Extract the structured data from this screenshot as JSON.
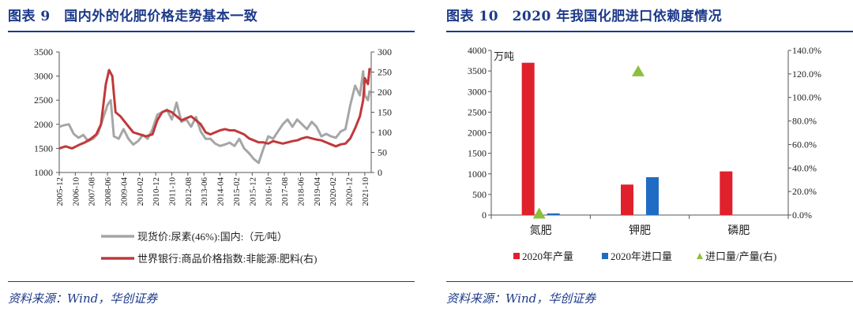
{
  "left": {
    "title": "图表 9　国内外的化肥价格走势基本一致",
    "source": "资料来源：Wind，华创证券",
    "chart_data": {
      "type": "line",
      "x_ticks": [
        "2005-12",
        "2006-10",
        "2007-08",
        "2008-06",
        "2009-04",
        "2010-02",
        "2010-12",
        "2011-10",
        "2012-08",
        "2013-06",
        "2014-04",
        "2015-02",
        "2015-12",
        "2016-10",
        "2017-08",
        "2018-06",
        "2019-04",
        "2020-02",
        "2020-12",
        "2021-10"
      ],
      "y_left_ticks": [
        "3500",
        "3000",
        "2500",
        "2000",
        "1500",
        "1000"
      ],
      "y_right_ticks": [
        "300",
        "250",
        "200",
        "150",
        "100",
        "50",
        "0"
      ],
      "ylim_left": [
        1000,
        3500
      ],
      "ylim_right": [
        0,
        300
      ],
      "series": [
        {
          "name": "现货价:尿素(46%):国内:（元/吨）",
          "axis": "left",
          "color": "#a6a6a6",
          "x": [
            "2005-12",
            "2006-03",
            "2006-06",
            "2006-09",
            "2006-12",
            "2007-03",
            "2007-06",
            "2007-09",
            "2007-12",
            "2008-03",
            "2008-06",
            "2008-08",
            "2008-10",
            "2009-01",
            "2009-04",
            "2009-07",
            "2009-10",
            "2010-01",
            "2010-04",
            "2010-07",
            "2010-10",
            "2011-01",
            "2011-04",
            "2011-07",
            "2011-10",
            "2012-01",
            "2012-04",
            "2012-07",
            "2012-10",
            "2013-01",
            "2013-04",
            "2013-07",
            "2013-10",
            "2014-01",
            "2014-04",
            "2014-07",
            "2014-10",
            "2015-01",
            "2015-04",
            "2015-07",
            "2015-10",
            "2016-01",
            "2016-04",
            "2016-07",
            "2016-10",
            "2017-01",
            "2017-04",
            "2017-07",
            "2017-10",
            "2018-01",
            "2018-04",
            "2018-07",
            "2018-10",
            "2019-01",
            "2019-04",
            "2019-07",
            "2019-10",
            "2020-01",
            "2020-04",
            "2020-07",
            "2020-10",
            "2021-01",
            "2021-04",
            "2021-07",
            "2021-09",
            "2021-10",
            "2021-12",
            "2022-01"
          ],
          "values": [
            1950,
            1980,
            2000,
            1800,
            1720,
            1780,
            1650,
            1700,
            1800,
            2100,
            2400,
            2500,
            1750,
            1700,
            1900,
            1700,
            1580,
            1650,
            1780,
            1700,
            1900,
            2200,
            2250,
            2300,
            2100,
            2450,
            2050,
            2100,
            1950,
            2150,
            1850,
            1700,
            1700,
            1600,
            1550,
            1580,
            1620,
            1550,
            1700,
            1500,
            1400,
            1280,
            1200,
            1500,
            1750,
            1700,
            1850,
            2000,
            2100,
            1950,
            2100,
            2000,
            1900,
            2050,
            1950,
            1750,
            1800,
            1750,
            1720,
            1850,
            1900,
            2400,
            2800,
            2600,
            3100,
            2600,
            2500,
            2700
          ]
        },
        {
          "name": "世界银行:商品价格指数:非能源:肥料(右)",
          "axis": "right",
          "color": "#c0393b",
          "x": [
            "2005-12",
            "2006-04",
            "2006-08",
            "2006-12",
            "2007-04",
            "2007-08",
            "2007-11",
            "2008-02",
            "2008-05",
            "2008-07",
            "2008-09",
            "2008-11",
            "2009-02",
            "2009-06",
            "2009-10",
            "2010-02",
            "2010-06",
            "2010-10",
            "2011-01",
            "2011-04",
            "2011-07",
            "2011-10",
            "2012-01",
            "2012-04",
            "2012-07",
            "2012-10",
            "2013-01",
            "2013-04",
            "2013-07",
            "2013-10",
            "2014-01",
            "2014-04",
            "2014-07",
            "2014-10",
            "2015-01",
            "2015-04",
            "2015-07",
            "2015-10",
            "2016-01",
            "2016-04",
            "2016-07",
            "2016-10",
            "2017-01",
            "2017-04",
            "2017-07",
            "2017-10",
            "2018-01",
            "2018-04",
            "2018-07",
            "2018-10",
            "2019-01",
            "2019-04",
            "2019-07",
            "2019-10",
            "2020-01",
            "2020-04",
            "2020-07",
            "2020-10",
            "2021-01",
            "2021-04",
            "2021-07",
            "2021-09",
            "2021-10",
            "2021-12",
            "2022-01"
          ],
          "values": [
            60,
            65,
            60,
            68,
            75,
            85,
            95,
            120,
            220,
            255,
            240,
            150,
            140,
            120,
            100,
            95,
            90,
            95,
            130,
            150,
            155,
            150,
            140,
            130,
            135,
            140,
            130,
            120,
            100,
            95,
            100,
            105,
            108,
            105,
            105,
            100,
            95,
            85,
            80,
            75,
            75,
            72,
            78,
            75,
            72,
            75,
            78,
            80,
            85,
            88,
            85,
            82,
            80,
            75,
            70,
            65,
            70,
            72,
            85,
            110,
            140,
            180,
            235,
            220,
            260
          ]
        }
      ]
    }
  },
  "right": {
    "title": "图表 10　2020 年我国化肥进口依赖度情况",
    "source": "资料来源：Wind，华创证券",
    "chart_data": {
      "type": "bar",
      "categories": [
        "氮肥",
        "钾肥",
        "磷肥"
      ],
      "ylabel": "万吨",
      "y_left_ticks": [
        "4000",
        "3500",
        "3000",
        "2500",
        "2000",
        "1500",
        "1000",
        "500",
        "0"
      ],
      "y_right_ticks": [
        "140.0%",
        "120.0%",
        "100.0%",
        "80.0%",
        "60.0%",
        "40.0%",
        "20.0%",
        "0.0%"
      ],
      "ylim_left": [
        0,
        4000
      ],
      "ylim_right": [
        0,
        1.4
      ],
      "series": [
        {
          "name": "2020年产量",
          "color": "#e0202b",
          "values": [
            3700,
            740,
            1060
          ]
        },
        {
          "name": "2020年进口量",
          "color": "#1f6cc4",
          "values": [
            40,
            920,
            0
          ]
        },
        {
          "name": "进口量/产量(右)",
          "color": "#8cbf3f",
          "type": "marker",
          "values": [
            0.01,
            1.22,
            null
          ]
        }
      ]
    }
  }
}
